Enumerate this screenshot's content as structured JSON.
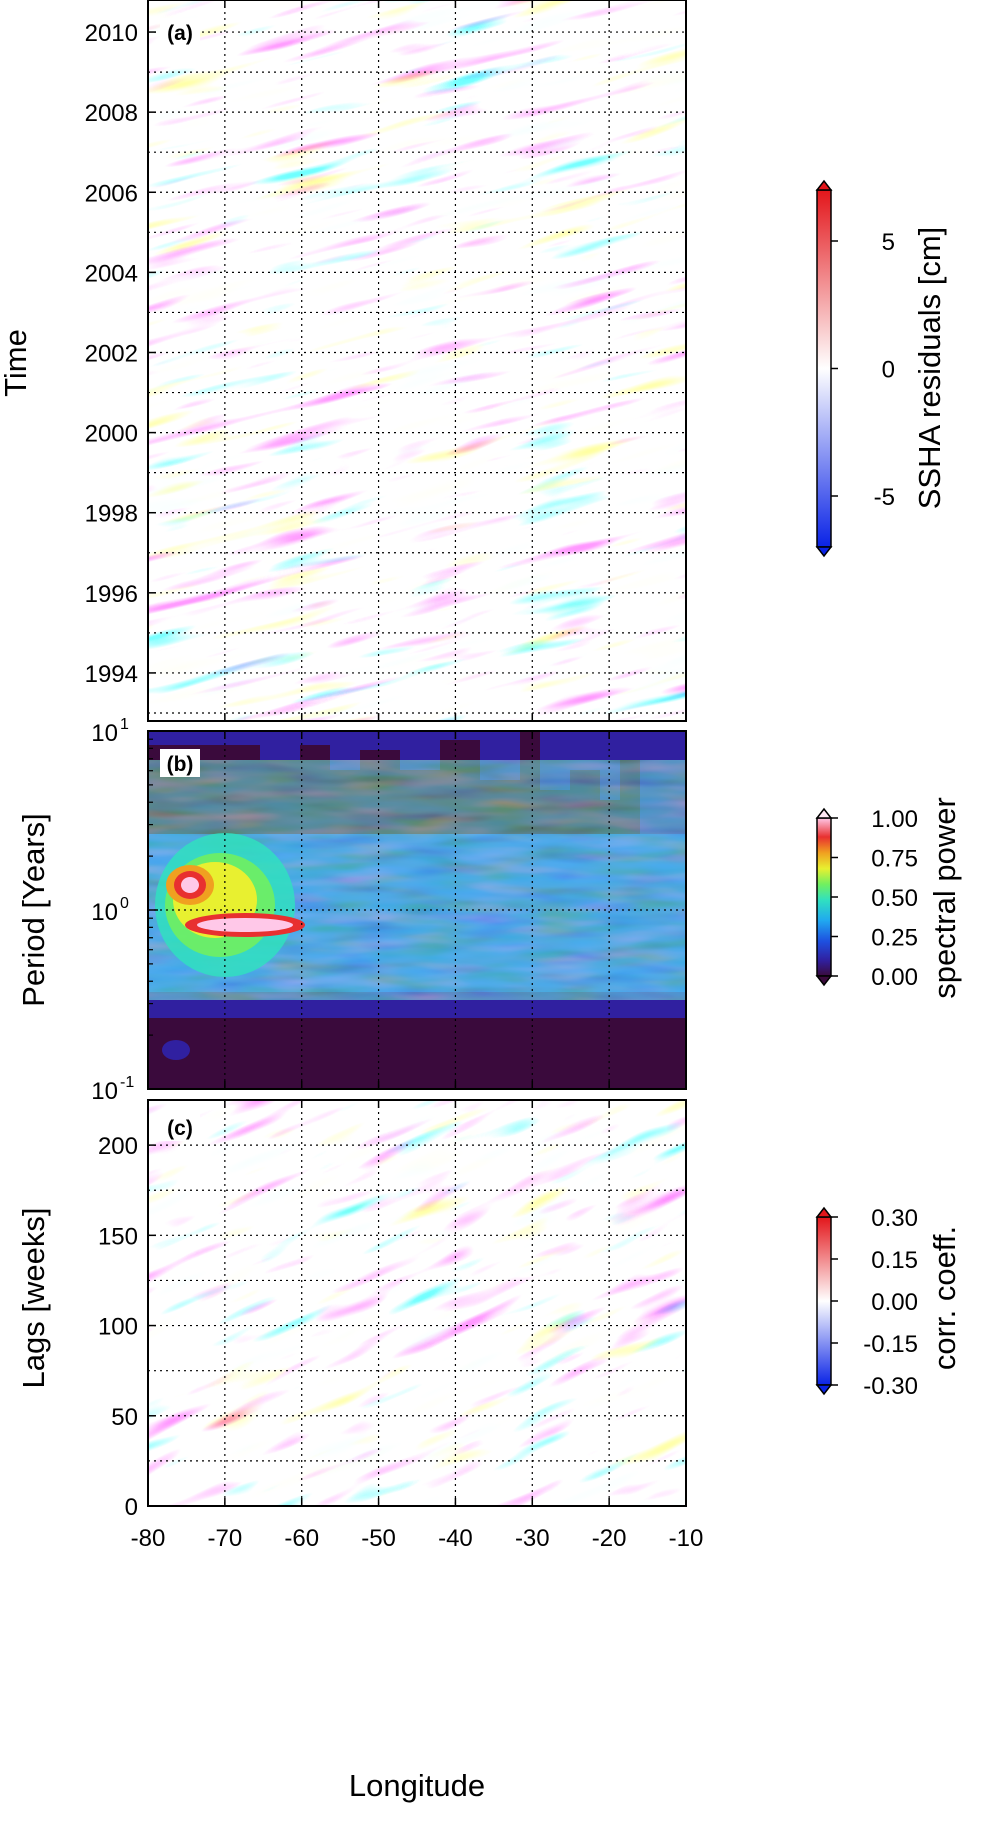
{
  "chart_data": [
    {
      "panel": "(a)",
      "type": "heatmap",
      "xlabel": "",
      "ylabel": "Time",
      "xlim": [
        -80,
        -10
      ],
      "ylim": [
        1992.8,
        2010.8
      ],
      "x_ticks": [
        "-80",
        "-70",
        "-60",
        "-50",
        "-40",
        "-30",
        "-20",
        "-10"
      ],
      "y_ticks": [
        1994,
        1996,
        1998,
        2000,
        2002,
        2004,
        2006,
        2008,
        2010
      ],
      "y_tick_labels": [
        "1994",
        "1996",
        "1998",
        "2000",
        "2002",
        "2004",
        "2006",
        "2008",
        "2010"
      ],
      "grid": true,
      "colorbar": {
        "label": "SSHA residuals [cm]",
        "range": [
          -7,
          7
        ],
        "tick_values": [
          -5,
          0,
          5
        ],
        "tick_labels": [
          "-5",
          "0",
          "5"
        ],
        "colormap": "blue-white-red",
        "colors": [
          "#0a23e6",
          "#ffffff",
          "#e3161b"
        ]
      }
    },
    {
      "panel": "(b)",
      "type": "heatmap",
      "xlabel": "",
      "ylabel": "Period [Years]",
      "xlim": [
        -80,
        -10
      ],
      "ylim": [
        0.1,
        10
      ],
      "y_scale": "log",
      "y_ticks": [
        0.1,
        1,
        10
      ],
      "y_tick_labels": [
        {
          "base": "10",
          "exp": "-1"
        },
        {
          "base": "10",
          "exp": "0"
        },
        {
          "base": "10",
          "exp": "1"
        }
      ],
      "grid": true,
      "colorbar": {
        "label": "spectral power",
        "range": [
          0,
          1
        ],
        "tick_values": [
          0,
          0.25,
          0.5,
          0.75,
          1
        ],
        "tick_labels": [
          "0.00",
          "0.25",
          "0.50",
          "0.75",
          "1.00"
        ],
        "colormap": "rainbow",
        "colors": [
          "#3a0a3c",
          "#3020a0",
          "#1e50e0",
          "#20a8f0",
          "#30e0c0",
          "#70f060",
          "#e8f030",
          "#f0a020",
          "#e83030",
          "#ffc8e8"
        ]
      }
    },
    {
      "panel": "(c)",
      "type": "heatmap",
      "xlabel": "Longitude",
      "ylabel": "Lags [weeks]",
      "xlim": [
        -80,
        -10
      ],
      "ylim": [
        0,
        225
      ],
      "x_ticks": [
        "-80",
        "-70",
        "-60",
        "-50",
        "-40",
        "-30",
        "-20",
        "-10"
      ],
      "y_ticks": [
        0,
        50,
        100,
        150,
        200
      ],
      "y_tick_labels": [
        "0",
        "50",
        "100",
        "150",
        "200"
      ],
      "grid": true,
      "colorbar": {
        "label": "corr. coeff.",
        "range": [
          -0.3,
          0.3
        ],
        "tick_values": [
          -0.3,
          -0.15,
          0,
          0.15,
          0.3
        ],
        "tick_labels": [
          "-0.30",
          "-0.15",
          "0.00",
          "0.15",
          "0.30"
        ],
        "colormap": "blue-white-red",
        "colors": [
          "#0a23e6",
          "#ffffff",
          "#e3161b"
        ]
      }
    }
  ]
}
